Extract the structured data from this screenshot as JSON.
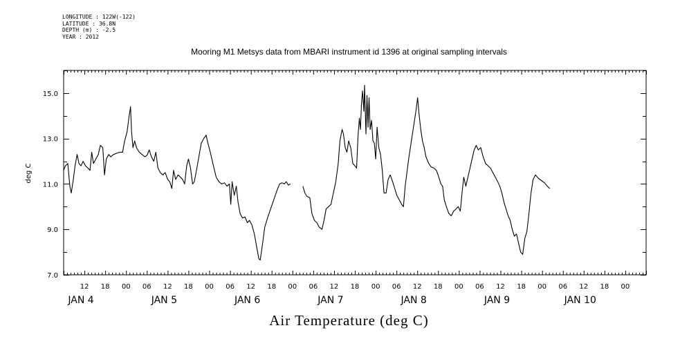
{
  "meta": {
    "longitude": "LONGITUDE : 122W(-122)",
    "latitude": "LATITUDE : 36.8N",
    "depth": "DEPTH (m) : -2.5",
    "year": "YEAR : 2012"
  },
  "chart_data": {
    "type": "line",
    "title": "Mooring M1 Metsys data from MBARI instrument id 1396 at original sampling intervals",
    "subtitle": "Air Temperature (deg C)",
    "ylabel": "deg C",
    "xlabel": "",
    "ylim": [
      7.0,
      16.0
    ],
    "yticks": [
      "7.0",
      "9.0",
      "11.0",
      "13.0",
      "15.0"
    ],
    "xlim": [
      6,
      174
    ],
    "hour_ticks": [
      {
        "t": 12,
        "label": "12"
      },
      {
        "t": 18,
        "label": "18"
      },
      {
        "t": 24,
        "label": "00"
      },
      {
        "t": 30,
        "label": "06"
      },
      {
        "t": 36,
        "label": "12"
      },
      {
        "t": 42,
        "label": "18"
      },
      {
        "t": 48,
        "label": "00"
      },
      {
        "t": 54,
        "label": "06"
      },
      {
        "t": 60,
        "label": "12"
      },
      {
        "t": 66,
        "label": "18"
      },
      {
        "t": 72,
        "label": "00"
      },
      {
        "t": 78,
        "label": "06"
      },
      {
        "t": 84,
        "label": "12"
      },
      {
        "t": 90,
        "label": "18"
      },
      {
        "t": 96,
        "label": "00"
      },
      {
        "t": 102,
        "label": "06"
      },
      {
        "t": 108,
        "label": "12"
      },
      {
        "t": 114,
        "label": "18"
      },
      {
        "t": 120,
        "label": "00"
      },
      {
        "t": 126,
        "label": "06"
      },
      {
        "t": 132,
        "label": "12"
      },
      {
        "t": 138,
        "label": "18"
      },
      {
        "t": 144,
        "label": "00"
      },
      {
        "t": 150,
        "label": "06"
      },
      {
        "t": 156,
        "label": "12"
      },
      {
        "t": 162,
        "label": "18"
      },
      {
        "t": 168,
        "label": "00"
      }
    ],
    "day_labels": [
      {
        "t": 11,
        "label": "JAN   4"
      },
      {
        "t": 35,
        "label": "JAN   5"
      },
      {
        "t": 59,
        "label": "JAN   6"
      },
      {
        "t": 83,
        "label": "JAN   7"
      },
      {
        "t": 107,
        "label": "JAN   8"
      },
      {
        "t": 131,
        "label": "JAN   9"
      },
      {
        "t": 155,
        "label": "JAN 10"
      }
    ],
    "series": [
      {
        "segments": [
          [
            [
              6,
              11.6
            ],
            [
              6.5,
              11.8
            ],
            [
              7.2,
              11.9
            ],
            [
              7.8,
              10.9
            ],
            [
              8.2,
              10.6
            ],
            [
              8.8,
              11.2
            ],
            [
              9.3,
              11.8
            ],
            [
              9.9,
              12.3
            ],
            [
              10.4,
              11.9
            ],
            [
              11,
              11.8
            ],
            [
              11.6,
              12
            ],
            [
              12.3,
              11.8
            ],
            [
              13,
              11.7
            ],
            [
              13.6,
              11.6
            ],
            [
              14.1,
              12.4
            ],
            [
              14.6,
              11.9
            ],
            [
              15.3,
              12.1
            ],
            [
              16,
              12.3
            ],
            [
              16.6,
              12.7
            ],
            [
              17.3,
              12.6
            ],
            [
              17.8,
              11.4
            ],
            [
              18.3,
              12.1
            ],
            [
              19,
              12.3
            ],
            [
              19.6,
              12.2
            ],
            [
              20.4,
              12.3
            ],
            [
              21.3,
              12.35
            ],
            [
              22.2,
              12.4
            ],
            [
              23,
              12.4
            ],
            [
              23.6,
              12.9
            ],
            [
              24.3,
              13.3
            ],
            [
              24.9,
              14.0
            ],
            [
              25.3,
              14.4
            ],
            [
              25.6,
              13.3
            ],
            [
              26,
              12.6
            ],
            [
              26.5,
              12.9
            ],
            [
              27,
              12.6
            ],
            [
              27.8,
              12.4
            ],
            [
              28.6,
              12.3
            ],
            [
              29.4,
              12.2
            ],
            [
              30,
              12.25
            ],
            [
              30.7,
              12.5
            ],
            [
              31.3,
              12.2
            ],
            [
              32,
              12.0
            ],
            [
              32.6,
              12.4
            ],
            [
              33.2,
              11.7
            ],
            [
              33.9,
              11.5
            ],
            [
              34.6,
              11.4
            ],
            [
              35.3,
              11.5
            ],
            [
              36,
              11.2
            ],
            [
              36.6,
              11.1
            ],
            [
              37.2,
              10.8
            ],
            [
              37.7,
              11.6
            ],
            [
              38.3,
              11.2
            ],
            [
              39,
              11.4
            ],
            [
              39.7,
              11.3
            ],
            [
              40.3,
              11.2
            ],
            [
              40.9,
              11.0
            ],
            [
              41.5,
              11.8
            ],
            [
              42,
              12.1
            ],
            [
              42.6,
              11.7
            ],
            [
              43.2,
              11.0
            ],
            [
              43.7,
              11.1
            ],
            [
              44.3,
              11.6
            ],
            [
              45,
              12.2
            ],
            [
              45.7,
              12.8
            ],
            [
              46.4,
              13.0
            ],
            [
              47.1,
              13.15
            ],
            [
              47.6,
              12.8
            ],
            [
              48.3,
              12.4
            ],
            [
              49.2,
              11.8
            ],
            [
              50,
              11.3
            ],
            [
              50.8,
              11.1
            ],
            [
              51.6,
              11.0
            ],
            [
              52.4,
              11.05
            ],
            [
              53.1,
              10.9
            ],
            [
              53.8,
              11.0
            ],
            [
              54.2,
              10.1
            ],
            [
              54.6,
              11.1
            ],
            [
              55.2,
              10.5
            ],
            [
              55.8,
              10.9
            ],
            [
              56.3,
              10.2
            ],
            [
              56.9,
              9.7
            ],
            [
              57.6,
              9.5
            ],
            [
              58.3,
              9.55
            ],
            [
              59,
              9.3
            ],
            [
              59.6,
              9.4
            ],
            [
              60.3,
              9.2
            ],
            [
              61,
              8.8
            ],
            [
              61.7,
              8.2
            ],
            [
              62.3,
              7.7
            ],
            [
              62.7,
              7.65
            ],
            [
              63.4,
              8.4
            ],
            [
              64,
              9.1
            ],
            [
              64.8,
              9.5
            ],
            [
              65.7,
              9.9
            ],
            [
              66.6,
              10.3
            ],
            [
              67.5,
              10.7
            ],
            [
              68.3,
              11.0
            ],
            [
              69,
              11.05
            ],
            [
              69.6,
              11.0
            ],
            [
              70.2,
              11.1
            ],
            [
              70.8,
              10.95
            ],
            [
              71.4,
              11.0
            ]
          ],
          [
            [
              75,
              10.9
            ],
            [
              75.6,
              10.6
            ],
            [
              76.2,
              10.45
            ],
            [
              77,
              10.4
            ],
            [
              77.6,
              9.7
            ],
            [
              78.3,
              9.4
            ],
            [
              79,
              9.3
            ],
            [
              79.7,
              9.1
            ],
            [
              80.5,
              9.0
            ],
            [
              81.1,
              9.4
            ],
            [
              81.7,
              9.9
            ],
            [
              82.4,
              10.0
            ],
            [
              83.1,
              10.1
            ],
            [
              83.8,
              10.6
            ],
            [
              84.5,
              11.1
            ],
            [
              85.2,
              11.9
            ],
            [
              85.7,
              12.9
            ],
            [
              86.3,
              13.4
            ],
            [
              86.7,
              13.2
            ],
            [
              87.2,
              12.6
            ],
            [
              87.7,
              12.4
            ],
            [
              88.2,
              12.9
            ],
            [
              88.8,
              12.6
            ],
            [
              89.4,
              11.9
            ],
            [
              90,
              11.8
            ],
            [
              90.5,
              11.7
            ],
            [
              90.9,
              13.1
            ],
            [
              91.3,
              13.9
            ],
            [
              91.6,
              13.4
            ],
            [
              91.9,
              14.5
            ],
            [
              92.2,
              15.1
            ],
            [
              92.6,
              14.2
            ],
            [
              92.8,
              15.35
            ],
            [
              93.2,
              13.2
            ],
            [
              93.5,
              14.9
            ],
            [
              93.8,
              13.5
            ],
            [
              94.1,
              14.8
            ],
            [
              94.4,
              13.4
            ],
            [
              94.8,
              13.8
            ],
            [
              95.2,
              12.9
            ],
            [
              95.6,
              12.8
            ],
            [
              96,
              12.1
            ],
            [
              96.4,
              13.5
            ],
            [
              96.9,
              12.6
            ],
            [
              97.4,
              12.3
            ],
            [
              97.9,
              11.6
            ],
            [
              98.4,
              10.6
            ],
            [
              99,
              10.6
            ],
            [
              99.6,
              11.2
            ],
            [
              100.2,
              11.4
            ],
            [
              100.9,
              11.1
            ],
            [
              101.5,
              10.8
            ],
            [
              102.1,
              10.5
            ],
            [
              102.8,
              10.3
            ],
            [
              103.5,
              10.1
            ],
            [
              104,
              10.0
            ],
            [
              104.5,
              10.9
            ],
            [
              105,
              11.5
            ],
            [
              105.6,
              12.2
            ],
            [
              106.3,
              12.9
            ],
            [
              107,
              13.6
            ],
            [
              107.6,
              14.2
            ],
            [
              108.1,
              14.8
            ],
            [
              108.5,
              14.1
            ],
            [
              109,
              13.4
            ],
            [
              109.5,
              12.9
            ],
            [
              110,
              12.6
            ],
            [
              110.5,
              12.2
            ],
            [
              111.3,
              11.9
            ],
            [
              112,
              11.75
            ],
            [
              112.8,
              11.7
            ],
            [
              113.5,
              11.6
            ],
            [
              114.2,
              11.3
            ],
            [
              114.8,
              11.0
            ],
            [
              115.3,
              10.9
            ],
            [
              115.8,
              10.3
            ],
            [
              116.4,
              10.0
            ],
            [
              117.1,
              9.7
            ],
            [
              117.8,
              9.6
            ],
            [
              118.5,
              9.8
            ],
            [
              119.2,
              9.9
            ],
            [
              119.8,
              10.0
            ],
            [
              120.4,
              9.8
            ],
            [
              120.9,
              10.6
            ],
            [
              121.4,
              11.3
            ],
            [
              122,
              10.9
            ],
            [
              122.6,
              11.3
            ],
            [
              123.2,
              11.7
            ],
            [
              123.8,
              12.1
            ],
            [
              124.4,
              12.5
            ],
            [
              125,
              12.7
            ],
            [
              125.6,
              12.5
            ],
            [
              126.3,
              12.6
            ],
            [
              127,
              12.2
            ],
            [
              127.7,
              11.9
            ],
            [
              128.4,
              11.8
            ],
            [
              129.1,
              11.7
            ],
            [
              129.8,
              11.5
            ],
            [
              130.5,
              11.3
            ],
            [
              131.2,
              11.1
            ],
            [
              131.8,
              10.9
            ],
            [
              132.4,
              10.6
            ],
            [
              133,
              10.2
            ],
            [
              133.6,
              9.9
            ],
            [
              134.2,
              9.6
            ],
            [
              134.8,
              9.4
            ],
            [
              135.4,
              9.0
            ],
            [
              136,
              8.7
            ],
            [
              136.6,
              8.8
            ],
            [
              137.2,
              8.4
            ],
            [
              137.8,
              8.0
            ],
            [
              138.4,
              7.9
            ],
            [
              139,
              8.6
            ],
            [
              139.6,
              8.9
            ],
            [
              140.2,
              9.7
            ],
            [
              140.8,
              10.6
            ],
            [
              141.4,
              11.2
            ],
            [
              142.1,
              11.4
            ],
            [
              142.9,
              11.25
            ],
            [
              143.8,
              11.15
            ],
            [
              144.7,
              11.05
            ],
            [
              145.5,
              10.9
            ],
            [
              146.2,
              10.8
            ]
          ]
        ]
      }
    ]
  }
}
